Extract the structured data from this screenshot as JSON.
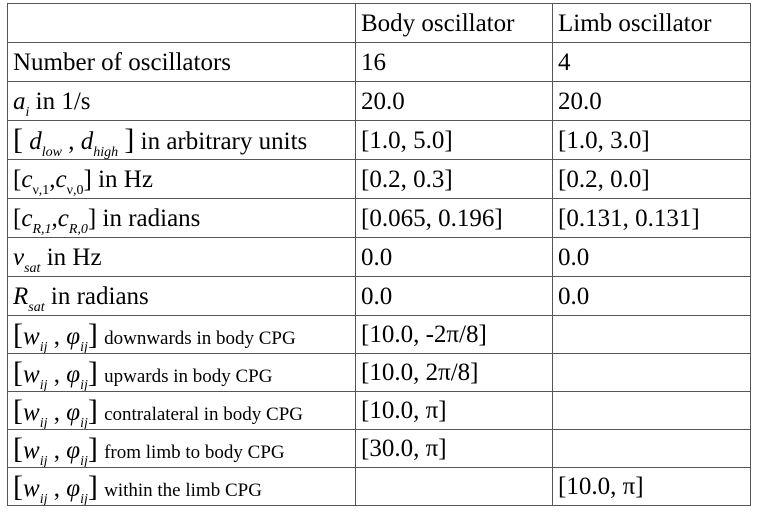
{
  "table": {
    "headers": [
      "",
      "Body oscillator",
      "Limb oscillator"
    ],
    "rows": [
      {
        "label_text": "Number of oscillators",
        "body": "16",
        "limb": "4"
      },
      {
        "symbol": "a",
        "symbol_sub": "i",
        "label_text": "in 1/s",
        "body": "20.0",
        "limb": "20.0"
      },
      {
        "sym1": "d",
        "sym1_sub": "low",
        "sym2": "d",
        "sym2_sub": "high",
        "label_text": "in arbitrary units",
        "body": "[1.0, 5.0]",
        "limb": "[1.0, 3.0]"
      },
      {
        "sym1": "c",
        "sym1_sub": "ν,1",
        "sym2": "c",
        "sym2_sub": "ν,0",
        "label_text": "in Hz",
        "body": "[0.2, 0.3]",
        "limb": "[0.2, 0.0]"
      },
      {
        "sym1": "c",
        "sym1_sub": "R,1",
        "sym2": "c",
        "sym2_sub": "R,0",
        "label_text": "in radians",
        "body": "[0.065, 0.196]",
        "limb": "[0.131, 0.131]"
      },
      {
        "symbol": "ν",
        "symbol_sub": "sat",
        "label_text": "in Hz",
        "body": "0.0",
        "limb": "0.0"
      },
      {
        "symbol": "R",
        "symbol_sub": "sat",
        "label_text": "in radians",
        "body": "0.0",
        "limb": "0.0"
      },
      {
        "sym1": "w",
        "sym1_sub": "ij",
        "sym2": "φ",
        "sym2_sub": "ij",
        "label_text": "downwards in body CPG",
        "body": "[10.0, -2π/8]",
        "limb": ""
      },
      {
        "sym1": "w",
        "sym1_sub": "ij",
        "sym2": "φ",
        "sym2_sub": "ij",
        "label_text": "upwards in body CPG",
        "body": "[10.0, 2π/8]",
        "limb": ""
      },
      {
        "sym1": "w",
        "sym1_sub": "ij",
        "sym2": "φ",
        "sym2_sub": "ij",
        "label_text": "contralateral in body CPG",
        "body": "[10.0, π]",
        "limb": ""
      },
      {
        "sym1": "w",
        "sym1_sub": "ij",
        "sym2": "φ",
        "sym2_sub": "ij",
        "label_text": "from limb to body CPG",
        "body": "[30.0, π]",
        "limb": ""
      },
      {
        "sym1": "w",
        "sym1_sub": "ij",
        "sym2": "φ",
        "sym2_sub": "ij",
        "label_text": "within the limb CPG",
        "body": "",
        "limb": "[10.0, π]"
      }
    ]
  }
}
